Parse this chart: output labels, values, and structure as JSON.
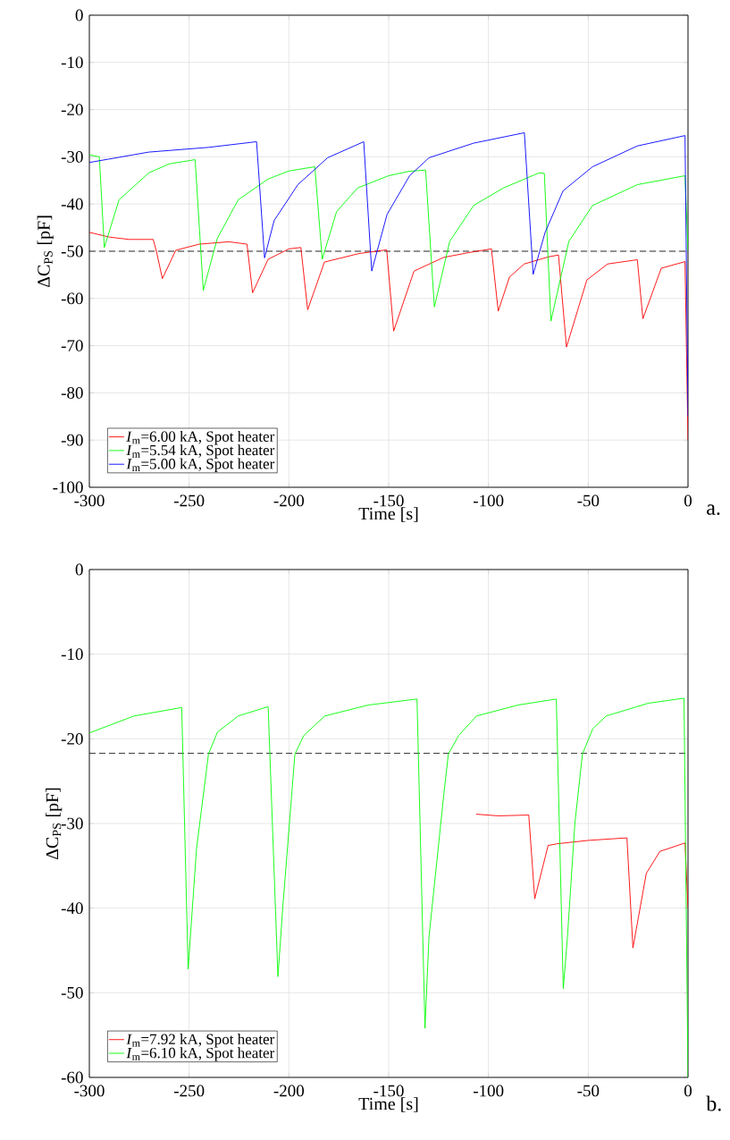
{
  "chart_data": [
    {
      "type": "line",
      "xlabel": "Time [s]",
      "ylabel": "ΔC$_{PS}$ [pF]",
      "annotations": [
        "a."
      ],
      "grid": true,
      "legend": "bottom left",
      "xlim": [
        -300,
        0
      ],
      "ylim": [
        -100,
        0
      ],
      "xticks": [
        -300,
        -250,
        -200,
        -150,
        -100,
        -50,
        0
      ],
      "yticks": [
        -100,
        -90,
        -80,
        -70,
        -60,
        -50,
        -40,
        -30,
        -20,
        -10,
        0
      ],
      "ref_lines": [
        {
          "axis": "y",
          "value": -50,
          "color": "#000000",
          "line_style": "dashed"
        }
      ],
      "series": [
        {
          "name": "*I*$_{m}$=6.00 kA, Spot heater",
          "color": "#ff0000",
          "x": [
            -300,
            -290,
            -280,
            -268,
            -266.4,
            -263.4,
            -256.7,
            -245,
            -230,
            -221,
            -218.2,
            -210.4,
            -200,
            -194,
            -190.6,
            -182.2,
            -165,
            -151,
            -147.5,
            -137.3,
            -122.4,
            -110,
            -98.5,
            -95.1,
            -89.5,
            -82.1,
            -70,
            -64.9,
            -60.9,
            -50.7,
            -40.3,
            -25.4,
            -22.6,
            -13.4,
            -1.5,
            0
          ],
          "values": [
            -46,
            -47,
            -47.5,
            -47.5,
            -50,
            -55.8,
            -49.8,
            -48.5,
            -48,
            -48.5,
            -58.8,
            -51.7,
            -49.5,
            -49.2,
            -62.4,
            -52.3,
            -50.5,
            -49.7,
            -66.9,
            -54.2,
            -51.3,
            -50.3,
            -49.5,
            -62.7,
            -55.5,
            -52.7,
            -51.2,
            -50.8,
            -70.3,
            -56.1,
            -52.7,
            -51.8,
            -64.3,
            -53.6,
            -52.2,
            -90
          ]
        },
        {
          "name": "*I*$_{m}$=5.54 kA, Spot heater",
          "color": "#00ff00",
          "x": [
            -300,
            -295,
            -292.5,
            -285.1,
            -270.2,
            -260,
            -247,
            -242.9,
            -235.9,
            -225.4,
            -210.4,
            -200,
            -187,
            -183.3,
            -176.1,
            -165.6,
            -150,
            -140.3,
            -131.5,
            -127.1,
            -119.4,
            -107.4,
            -92.5,
            -74.6,
            -72,
            -68.7,
            -59.7,
            -47.8,
            -25.4,
            -1.5,
            0
          ],
          "values": [
            -29.6,
            -30,
            -49.2,
            -39.1,
            -33.4,
            -31.5,
            -30.6,
            -58.3,
            -47.3,
            -39.1,
            -34.7,
            -33,
            -32.1,
            -51.7,
            -41.6,
            -36.6,
            -34,
            -33.1,
            -32.8,
            -61.8,
            -47.9,
            -40.3,
            -36.6,
            -33.4,
            -33.5,
            -64.8,
            -47.9,
            -40.3,
            -35.9,
            -34,
            -50
          ]
        },
        {
          "name": "*I*$_{m}$=5.00 kA, Spot heater",
          "color": "#0000ff",
          "x": [
            -300,
            -270.2,
            -240.3,
            -216.2,
            -212.2,
            -207.4,
            -195.5,
            -180.6,
            -162.5,
            -158.5,
            -150.8,
            -139.5,
            -129.8,
            -107.4,
            -82,
            -77.6,
            -71.6,
            -62.6,
            -47.8,
            -25.4,
            -1.5,
            0
          ],
          "values": [
            -31.2,
            -29,
            -28,
            -26.8,
            -51.4,
            -43.5,
            -35.9,
            -30.2,
            -26.8,
            -54.2,
            -42.2,
            -34,
            -30.2,
            -27.1,
            -24.9,
            -54.9,
            -46,
            -37.2,
            -32.1,
            -27.7,
            -25.5,
            -85
          ]
        }
      ]
    },
    {
      "type": "line",
      "xlabel": "Time [s]",
      "ylabel": "ΔC$_{PS}$ [pF]",
      "annotations": [
        "b."
      ],
      "grid": true,
      "legend": "bottom left",
      "xlim": [
        -300,
        0
      ],
      "ylim": [
        -60,
        0
      ],
      "xticks": [
        -300,
        -250,
        -200,
        -150,
        -100,
        -50,
        0
      ],
      "yticks": [
        -60,
        -50,
        -40,
        -30,
        -20,
        -10,
        0
      ],
      "ref_lines": [
        {
          "axis": "y",
          "value": -21.7,
          "color": "#000000",
          "line_style": "dashed"
        }
      ],
      "series": [
        {
          "name": "*I*$_{m}$=7.92 kA, Spot heater",
          "color": "#ff0000",
          "x": [
            -106.2,
            -95,
            -79.8,
            -76.8,
            -70.1,
            -65.7,
            -50,
            -30.6,
            -27.6,
            -20.9,
            -14.1,
            -1.5,
            0
          ],
          "values": [
            -28.9,
            -29.1,
            -29,
            -38.9,
            -32.6,
            -32.4,
            -32,
            -31.7,
            -44.7,
            -35.9,
            -33.3,
            -32.3,
            -40
          ]
        },
        {
          "name": "*I*$_{m}$=6.10 kA, Spot heater",
          "color": "#00ff00",
          "x": [
            -300,
            -277.6,
            -253.7,
            -250.5,
            -246.3,
            -240.3,
            -235.8,
            -225.4,
            -210.4,
            -205.5,
            -203,
            -197,
            -192.5,
            -182,
            -160,
            -135.8,
            -131.8,
            -129.8,
            -122.4,
            -120.1,
            -114.9,
            -106,
            -85,
            -66,
            -62.5,
            -60.4,
            -56.7,
            -52.9,
            -47.7,
            -41,
            -20,
            -2,
            0
          ],
          "values": [
            -19.3,
            -17.3,
            -16.3,
            -47.2,
            -33,
            -21.8,
            -19.2,
            -17.3,
            -16.2,
            -48.1,
            -39.7,
            -21.8,
            -19.6,
            -17.3,
            -16,
            -15.3,
            -54.2,
            -43.4,
            -26.6,
            -21.8,
            -19.6,
            -17.3,
            -16,
            -15.3,
            -49.5,
            -43.4,
            -30,
            -21.8,
            -18.8,
            -17.3,
            -15.8,
            -15.2,
            -60
          ]
        }
      ]
    }
  ]
}
